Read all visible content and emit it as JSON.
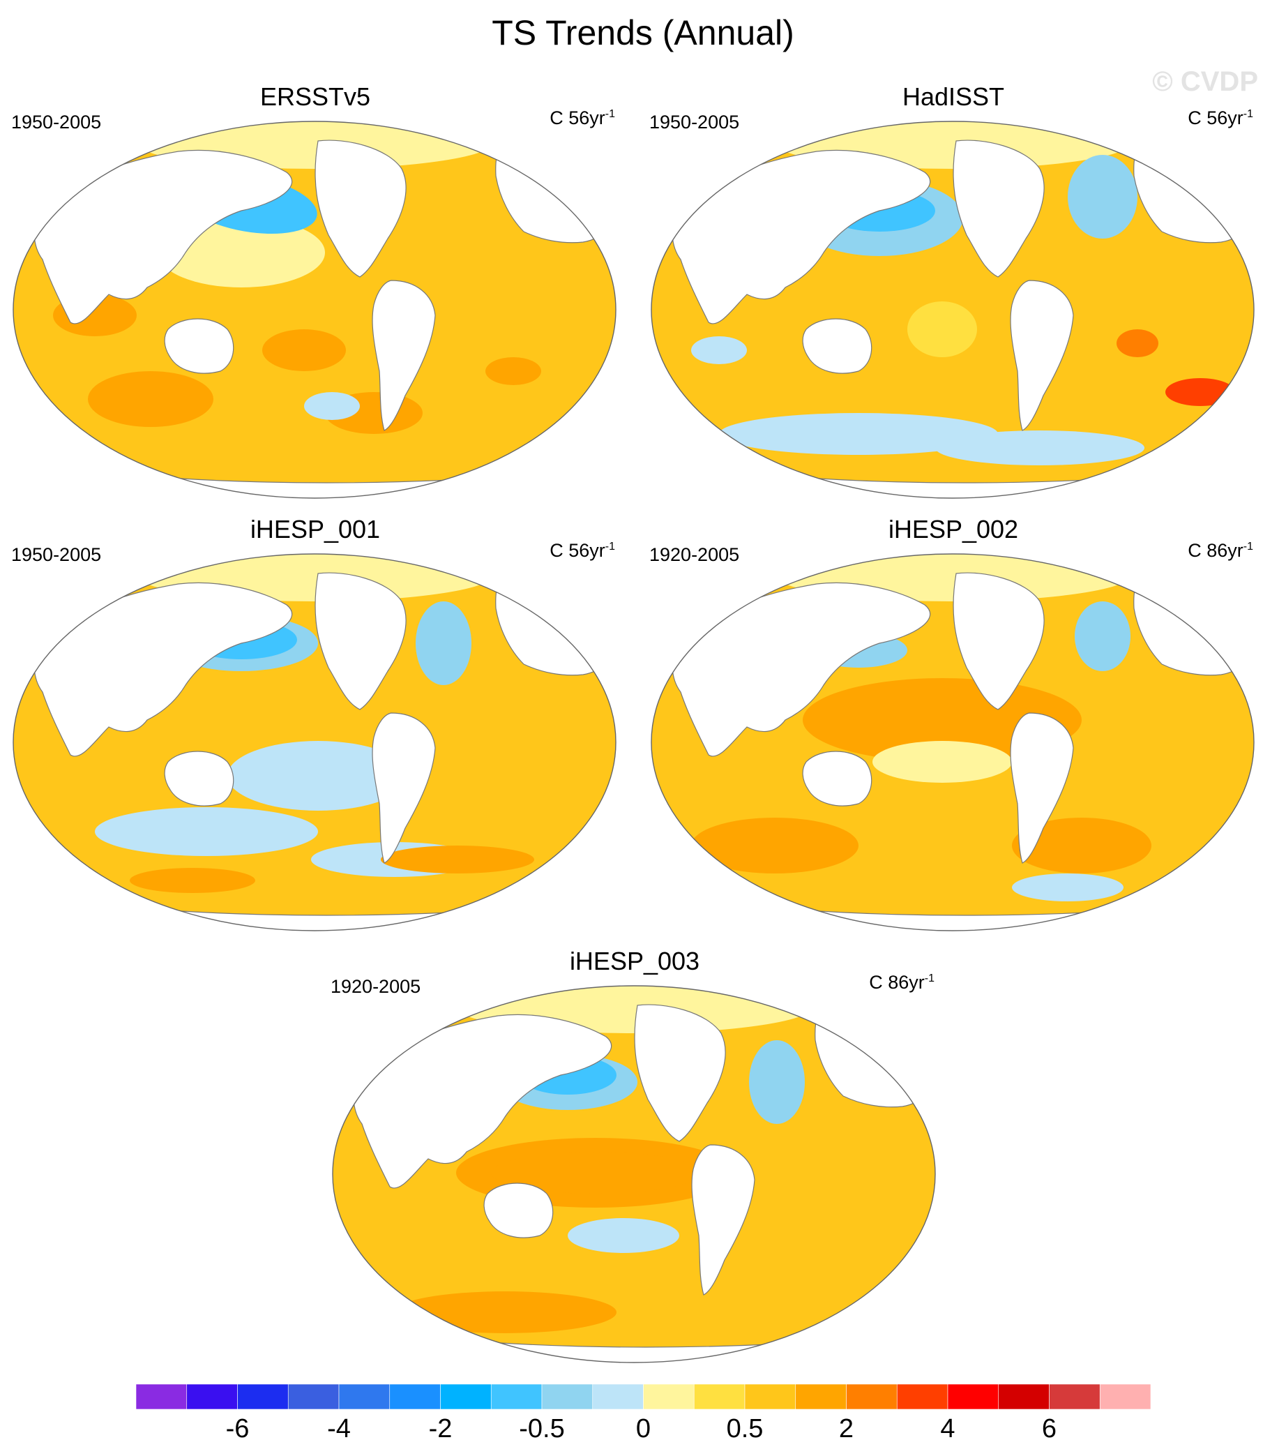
{
  "title": "TS Trends (Annual)",
  "watermark": "© CVDP",
  "panels": [
    {
      "name": "ERSSTv5",
      "period": "1950-2005",
      "units_prefix": "C 56yr",
      "units_exp": "-1"
    },
    {
      "name": "HadISST",
      "period": "1950-2005",
      "units_prefix": "C 56yr",
      "units_exp": "-1"
    },
    {
      "name": "iHESP_001",
      "period": "1950-2005",
      "units_prefix": "C 56yr",
      "units_exp": "-1"
    },
    {
      "name": "iHESP_002",
      "period": "1920-2005",
      "units_prefix": "C 86yr",
      "units_exp": "-1"
    },
    {
      "name": "iHESP_003",
      "period": "1920-2005",
      "units_prefix": "C 86yr",
      "units_exp": "-1"
    }
  ],
  "colorbar": {
    "colors": [
      "#8a2be2",
      "#3a0ff0",
      "#1c2df0",
      "#3a5fe0",
      "#2f78ee",
      "#1a90ff",
      "#00b2ff",
      "#40c4ff",
      "#90d4f0",
      "#bde4f8",
      "#fff59d",
      "#ffe040",
      "#ffc61a",
      "#ffa500",
      "#ff7f00",
      "#ff3f00",
      "#ff0000",
      "#d40000",
      "#d63a3a",
      "#ffb0b0"
    ],
    "labels": [
      "-6",
      "-4",
      "-2",
      "-0.5",
      "0",
      "0.5",
      "2",
      "4",
      "6"
    ]
  }
}
